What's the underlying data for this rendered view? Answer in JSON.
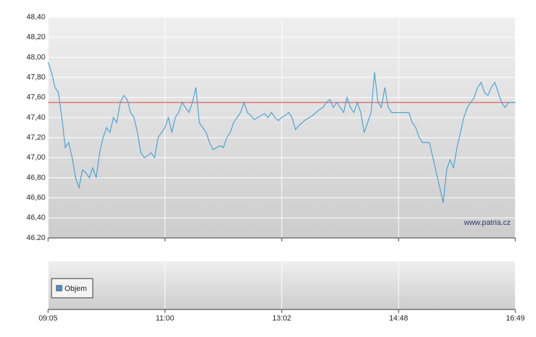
{
  "chart_data": [
    {
      "type": "line",
      "annotation": "www.patria.cz",
      "color": "#46a2d4",
      "reference_line": 47.55,
      "reference_color": "#e05a5a",
      "grid": true,
      "xlim": [
        0,
        136
      ],
      "xticks": [
        {
          "value": 0,
          "label": "09:05"
        },
        {
          "value": 34,
          "label": "11:00"
        },
        {
          "value": 68,
          "label": "13:02"
        },
        {
          "value": 102,
          "label": "14:48"
        },
        {
          "value": 136,
          "label": "16:49"
        }
      ],
      "ylim": [
        46.2,
        48.4
      ],
      "yticks": [
        {
          "value": 48.4,
          "label": "48,40"
        },
        {
          "value": 48.2,
          "label": "48,20"
        },
        {
          "value": 48.0,
          "label": "48,00"
        },
        {
          "value": 47.8,
          "label": "47,80"
        },
        {
          "value": 47.6,
          "label": "47,60"
        },
        {
          "value": 47.4,
          "label": "47,40"
        },
        {
          "value": 47.2,
          "label": "47,20"
        },
        {
          "value": 47.0,
          "label": "47,00"
        },
        {
          "value": 46.8,
          "label": "46,80"
        },
        {
          "value": 46.6,
          "label": "46,60"
        },
        {
          "value": 46.4,
          "label": "46,40"
        },
        {
          "value": 46.2,
          "label": "46.20"
        }
      ],
      "values": [
        47.95,
        47.85,
        47.7,
        47.65,
        47.4,
        47.1,
        47.15,
        47.0,
        46.8,
        46.7,
        46.88,
        46.85,
        46.8,
        46.9,
        46.8,
        47.05,
        47.2,
        47.3,
        47.25,
        47.4,
        47.35,
        47.55,
        47.62,
        47.58,
        47.45,
        47.4,
        47.25,
        47.05,
        47.0,
        47.02,
        47.05,
        47.0,
        47.2,
        47.25,
        47.3,
        47.4,
        47.25,
        47.4,
        47.45,
        47.55,
        47.5,
        47.45,
        47.55,
        47.7,
        47.35,
        47.3,
        47.25,
        47.15,
        47.08,
        47.1,
        47.12,
        47.1,
        47.2,
        47.25,
        47.35,
        47.4,
        47.45,
        47.55,
        47.45,
        47.42,
        47.38,
        47.4,
        47.42,
        47.44,
        47.4,
        47.45,
        47.4,
        47.37,
        47.4,
        47.42,
        47.45,
        47.4,
        47.28,
        47.32,
        47.35,
        47.38,
        47.4,
        47.42,
        47.45,
        47.48,
        47.5,
        47.55,
        47.58,
        47.5,
        47.55,
        47.5,
        47.45,
        47.6,
        47.5,
        47.45,
        47.55,
        47.45,
        47.25,
        47.35,
        47.45,
        47.85,
        47.55,
        47.5,
        47.7,
        47.5,
        47.45,
        47.45,
        47.45,
        47.45,
        47.45,
        47.45,
        47.35,
        47.3,
        47.2,
        47.15,
        47.15,
        47.15,
        47.0,
        46.85,
        46.7,
        46.55,
        46.88,
        46.98,
        46.9,
        47.1,
        47.25,
        47.4,
        47.5,
        47.55,
        47.6,
        47.7,
        47.75,
        47.65,
        47.62,
        47.7,
        47.75,
        47.65,
        47.55,
        47.5,
        47.55,
        47.55,
        47.55
      ]
    },
    {
      "type": "bar",
      "series": [
        {
          "name": "Objem",
          "color": "#4f8fc8",
          "values": []
        }
      ]
    }
  ]
}
